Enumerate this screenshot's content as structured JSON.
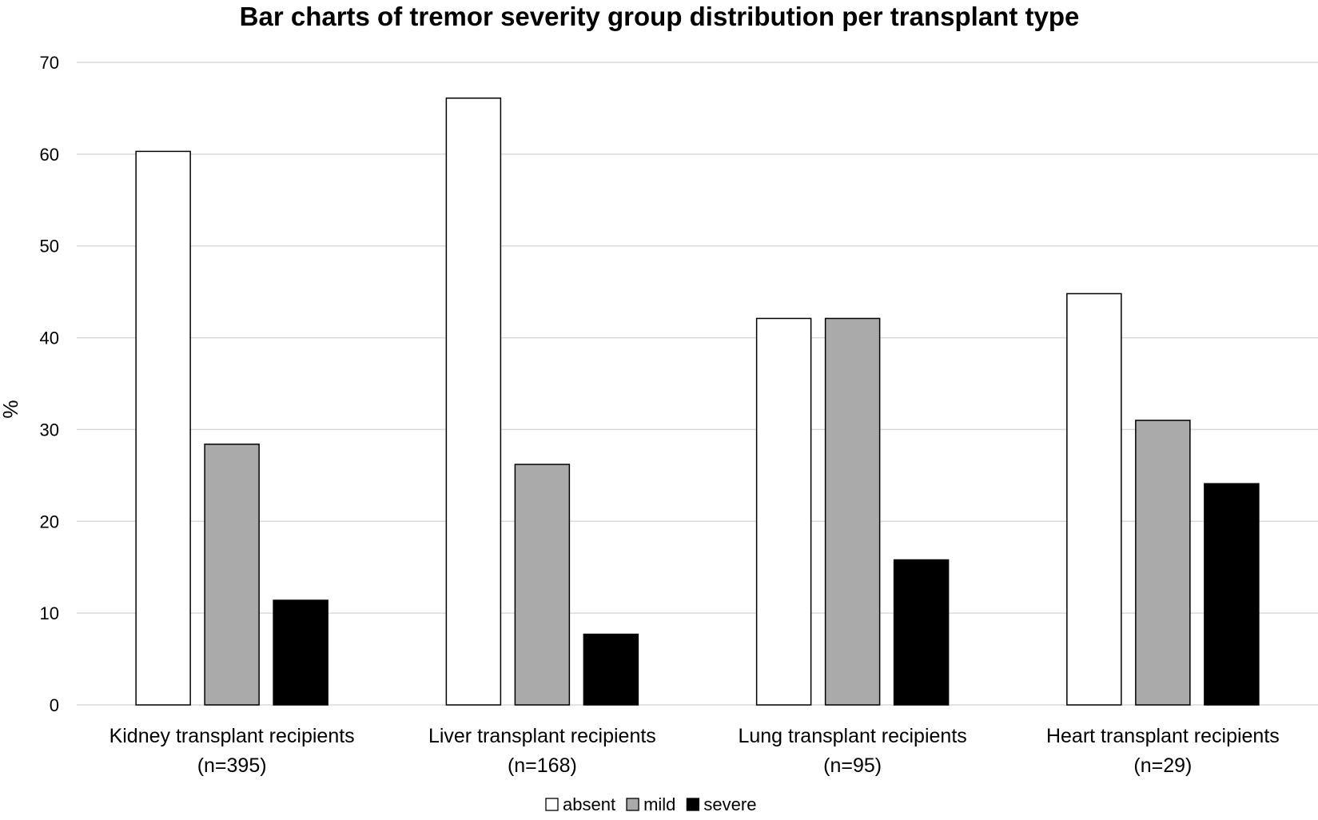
{
  "chart_data": {
    "type": "bar",
    "title": "Bar charts of tremor severity group distribution per transplant type",
    "ylabel": "%",
    "xlabel": "",
    "ylim": [
      0,
      70
    ],
    "yticks": [
      0,
      10,
      20,
      30,
      40,
      50,
      60,
      70
    ],
    "grid": true,
    "legend_position": "bottom",
    "categories": [
      {
        "line1": "Kidney transplant recipients",
        "line2": "(n=395)"
      },
      {
        "line1": "Liver transplant recipients",
        "line2": "(n=168)"
      },
      {
        "line1": "Lung transplant recipients",
        "line2": "(n=95)"
      },
      {
        "line1": "Heart  transplant recipients",
        "line2": "(n=29)"
      }
    ],
    "series": [
      {
        "name": "absent",
        "color": "#ffffff",
        "values": [
          60.3,
          66.1,
          42.1,
          44.8
        ]
      },
      {
        "name": "mild",
        "color": "#aaaaaa",
        "values": [
          28.4,
          26.2,
          42.1,
          31.0
        ]
      },
      {
        "name": "severe",
        "color": "#000000",
        "values": [
          11.4,
          7.7,
          15.8,
          24.1
        ]
      }
    ]
  }
}
